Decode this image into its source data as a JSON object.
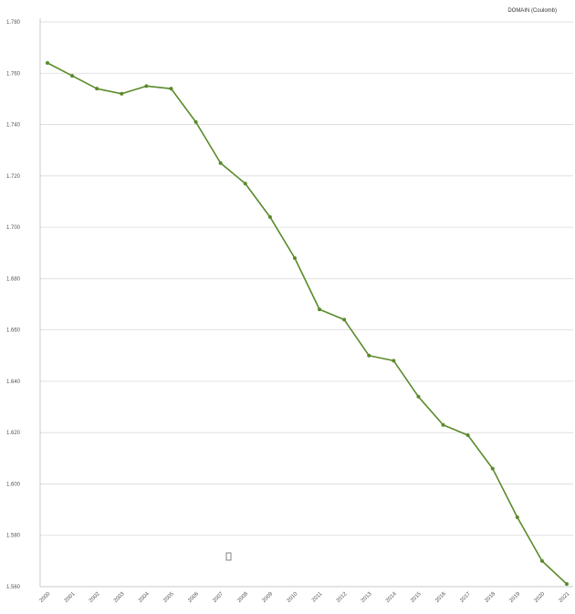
{
  "chart_data": {
    "type": "line",
    "title": "",
    "xlabel": "",
    "ylabel": "",
    "categories": [
      "2000",
      "2001",
      "2002",
      "2003",
      "2004",
      "2005",
      "2006",
      "2007",
      "2008",
      "2009",
      "2010",
      "2011",
      "2012",
      "2013",
      "2014",
      "2015",
      "2016",
      "2017",
      "2018",
      "2019",
      "2020",
      "2021"
    ],
    "series": [
      {
        "name": "DOMAIN (Coulomb)",
        "color": "#5a8a2a",
        "values": [
          1.764,
          1.759,
          1.754,
          1.752,
          1.755,
          1.754,
          1.741,
          1.725,
          1.717,
          1.704,
          1.688,
          1.668,
          1.664,
          1.65,
          1.648,
          1.634,
          1.623,
          1.619,
          1.606,
          1.587,
          1.57,
          1.561
        ]
      }
    ],
    "y_tick_labels": [
      "1.560",
      "1.580",
      "1.600",
      "1.620",
      "1.640",
      "1.660",
      "1.680",
      "1.700",
      "1.720",
      "1.740",
      "1.760",
      "1.780"
    ],
    "ylim": [
      1.56,
      1.78
    ],
    "grid": "horizontal",
    "legend_position": "top-right"
  }
}
